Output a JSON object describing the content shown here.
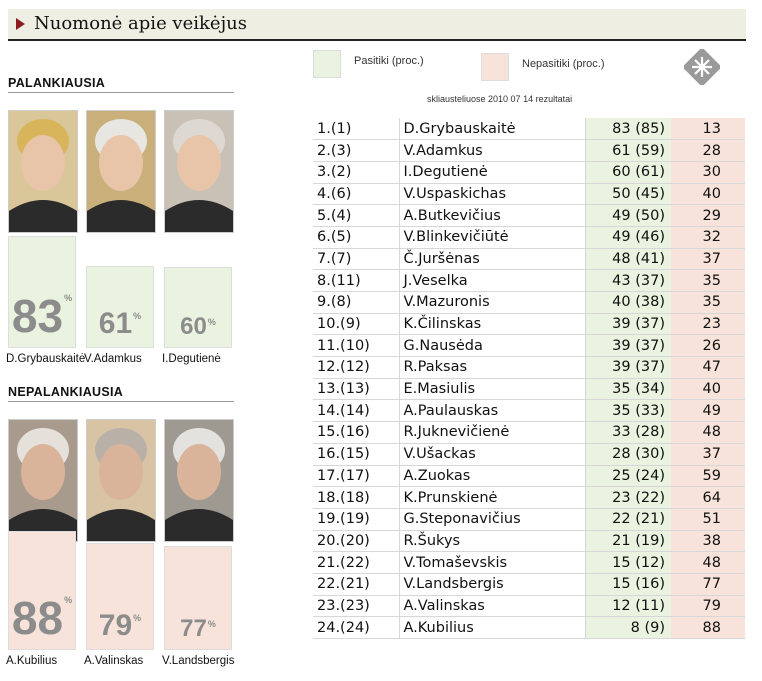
{
  "title": "Nuomonė apie veikėjus",
  "legend": {
    "trust": "Pasitiki (proc.)",
    "distrust": "Nepasitiki (proc.)"
  },
  "note": "skliausteliuose 2010 07 14 rezultatai",
  "favorable": {
    "label": "PALANKIAUSIA",
    "people": [
      {
        "name": "D.Grybauskaitė",
        "value": 83
      },
      {
        "name": "V.Adamkus",
        "value": 61
      },
      {
        "name": "I.Degutienė",
        "value": 60
      }
    ]
  },
  "unfavorable": {
    "label": "NEPALANKIAUSIA",
    "people": [
      {
        "name": "A.Kubilius",
        "value": 88
      },
      {
        "name": "A.Valinskas",
        "value": 79
      },
      {
        "name": "V.Landsbergis",
        "value": 77
      }
    ]
  },
  "percent_sign": "%",
  "colors": {
    "trust": "#e9f3df",
    "distrust": "#f7e3d9",
    "accent": "#8a1c22"
  },
  "chart_data": {
    "type": "table",
    "columns": [
      "rank",
      "name",
      "trust",
      "distrust"
    ],
    "rows": [
      {
        "rank": "1.(1)",
        "name": "D.Grybauskaitė",
        "trust": "83 (85)",
        "distrust": "13"
      },
      {
        "rank": "2.(3)",
        "name": "V.Adamkus",
        "trust": "61 (59)",
        "distrust": "28"
      },
      {
        "rank": "3.(2)",
        "name": "I.Degutienė",
        "trust": "60 (61)",
        "distrust": "30"
      },
      {
        "rank": "4.(6)",
        "name": "V.Uspaskichas",
        "trust": "50 (45)",
        "distrust": "40"
      },
      {
        "rank": "5.(4)",
        "name": "A.Butkevičius",
        "trust": "49 (50)",
        "distrust": "29"
      },
      {
        "rank": "6.(5)",
        "name": "V.Blinkevičiūtė",
        "trust": "49 (46)",
        "distrust": "32"
      },
      {
        "rank": "7.(7)",
        "name": "Č.Juršėnas",
        "trust": "48 (41)",
        "distrust": "37"
      },
      {
        "rank": "8.(11)",
        "name": "J.Veselka",
        "trust": "43 (37)",
        "distrust": "35"
      },
      {
        "rank": "9.(8)",
        "name": "V.Mazuronis",
        "trust": "40 (38)",
        "distrust": "35"
      },
      {
        "rank": "10.(9)",
        "name": "K.Čilinskas",
        "trust": "39 (37)",
        "distrust": "23"
      },
      {
        "rank": "11.(10)",
        "name": "G.Nausėda",
        "trust": "39 (37)",
        "distrust": "26"
      },
      {
        "rank": "12.(12)",
        "name": "R.Paksas",
        "trust": "39 (37)",
        "distrust": "47"
      },
      {
        "rank": "13.(13)",
        "name": "E.Masiulis",
        "trust": "35 (34)",
        "distrust": "40"
      },
      {
        "rank": "14.(14)",
        "name": "A.Paulauskas",
        "trust": "35 (33)",
        "distrust": "49"
      },
      {
        "rank": "15.(16)",
        "name": "R.Juknevičienė",
        "trust": "33 (28)",
        "distrust": "48"
      },
      {
        "rank": "16.(15)",
        "name": "V.Ušackas",
        "trust": "28 (30)",
        "distrust": "37"
      },
      {
        "rank": "17.(17)",
        "name": "A.Zuokas",
        "trust": "25 (24)",
        "distrust": "59"
      },
      {
        "rank": "18.(18)",
        "name": "K.Prunskienė",
        "trust": "23 (22)",
        "distrust": "64"
      },
      {
        "rank": "19.(19)",
        "name": "G.Steponavičius",
        "trust": "22 (21)",
        "distrust": "51"
      },
      {
        "rank": "20.(20)",
        "name": "R.Šukys",
        "trust": "21 (19)",
        "distrust": "38"
      },
      {
        "rank": "21.(22)",
        "name": "V.Tomaševskis",
        "trust": "15 (12)",
        "distrust": "48"
      },
      {
        "rank": "22.(21)",
        "name": "V.Landsbergis",
        "trust": "15 (16)",
        "distrust": "77"
      },
      {
        "rank": "23.(23)",
        "name": "A.Valinskas",
        "trust": "12 (11)",
        "distrust": "79"
      },
      {
        "rank": "24.(24)",
        "name": "A.Kubilius",
        "trust": "8 (9)",
        "distrust": "88"
      }
    ]
  }
}
